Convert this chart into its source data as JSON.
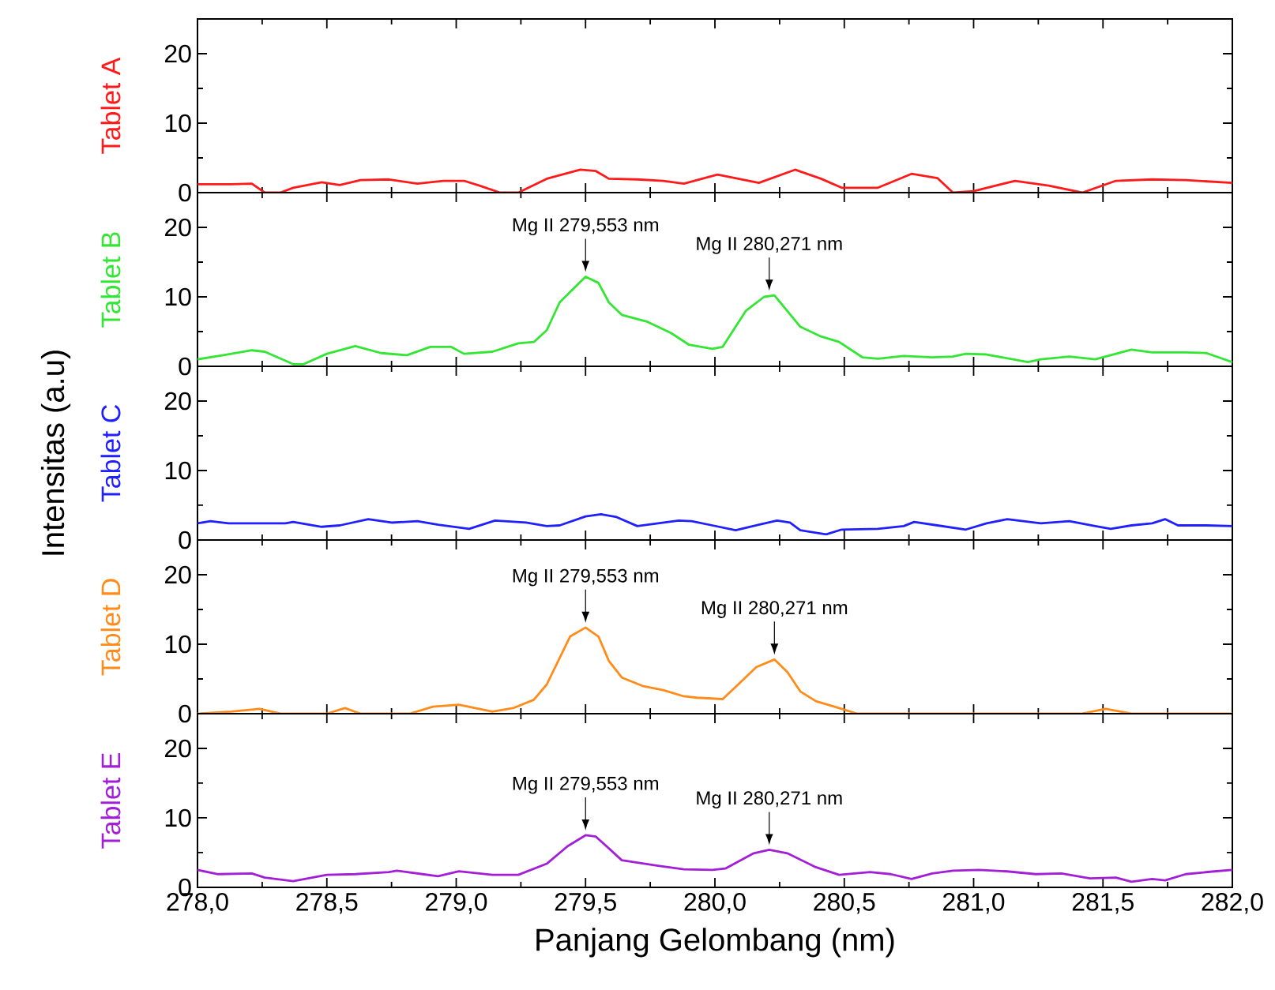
{
  "chart_data": [
    {
      "type": "line",
      "ylabel": "Tablet A",
      "xlim": [
        278,
        282
      ],
      "xticks": [
        {
          "value": 278,
          "label": null
        },
        {
          "value": 278.5,
          "label": null
        },
        {
          "value": 279,
          "label": null
        },
        {
          "value": 279.5,
          "label": null
        },
        {
          "value": 280,
          "label": null
        },
        {
          "value": 280.5,
          "label": null
        },
        {
          "value": 281,
          "label": null
        },
        {
          "value": 281.5,
          "label": null
        },
        {
          "value": 282,
          "label": null
        }
      ],
      "ylim": [
        0,
        25
      ],
      "yticks": [
        0,
        10,
        20
      ],
      "tick_labels": "y",
      "series": [
        {
          "color": "#ff1a1a",
          "x": [
            278.0,
            278.13,
            278.21,
            278.26,
            278.32,
            278.37,
            278.48,
            278.55,
            278.63,
            278.74,
            278.85,
            278.95,
            279.03,
            279.09,
            279.17,
            279.24,
            279.35,
            279.48,
            279.54,
            279.59,
            279.7,
            279.8,
            279.88,
            280.01,
            280.17,
            280.31,
            280.41,
            280.49,
            280.63,
            280.76,
            280.86,
            280.92,
            281.0,
            281.16,
            281.29,
            281.42,
            281.55,
            281.69,
            281.82,
            282.0
          ],
          "values": [
            1.2,
            1.2,
            1.3,
            0,
            0,
            0.7,
            1.5,
            1.1,
            1.8,
            1.9,
            1.3,
            1.7,
            1.7,
            1.0,
            0,
            0,
            2.0,
            3.3,
            3.1,
            2.0,
            1.9,
            1.7,
            1.3,
            2.6,
            1.4,
            3.3,
            2.0,
            0.7,
            0.7,
            2.7,
            2.1,
            0,
            0.2,
            1.7,
            1.0,
            0,
            1.7,
            1.9,
            1.8,
            1.4
          ]
        }
      ]
    },
    {
      "type": "line",
      "ylabel": "Tablet B",
      "xlim": [
        278,
        282
      ],
      "xticks": [
        {
          "value": 278,
          "label": null
        },
        {
          "value": 278.5,
          "label": null
        },
        {
          "value": 279,
          "label": null
        },
        {
          "value": 279.5,
          "label": null
        },
        {
          "value": 280,
          "label": null
        },
        {
          "value": 280.5,
          "label": null
        },
        {
          "value": 281,
          "label": null
        },
        {
          "value": 281.5,
          "label": null
        },
        {
          "value": 282,
          "label": null
        }
      ],
      "ylim": [
        0,
        25
      ],
      "yticks": [
        0,
        10,
        20
      ],
      "tick_labels": "y",
      "annotations": [
        {
          "text": "Mg II 279,553 nm",
          "x": 279.5,
          "y": 12.9
        },
        {
          "text": "Mg II 280,271 nm",
          "x": 280.21,
          "y": 10.2
        }
      ],
      "series": [
        {
          "color": "#33e633",
          "x": [
            278.0,
            278.1,
            278.21,
            278.26,
            278.37,
            278.41,
            278.5,
            278.61,
            278.71,
            278.81,
            278.9,
            278.98,
            279.03,
            279.14,
            279.24,
            279.3,
            279.35,
            279.4,
            279.5,
            279.55,
            279.59,
            279.64,
            279.74,
            279.83,
            279.9,
            279.99,
            280.03,
            280.12,
            280.19,
            280.23,
            280.33,
            280.41,
            280.48,
            280.57,
            280.63,
            280.73,
            280.84,
            280.92,
            280.97,
            281.05,
            281.21,
            281.26,
            281.37,
            281.47,
            281.61,
            281.69,
            281.82,
            281.9,
            282.0
          ],
          "values": [
            1.0,
            1.6,
            2.3,
            2.1,
            0.3,
            0.3,
            1.8,
            2.9,
            1.9,
            1.6,
            2.8,
            2.8,
            1.8,
            2.1,
            3.3,
            3.5,
            5.2,
            9.2,
            12.9,
            12.0,
            9.2,
            7.4,
            6.4,
            4.8,
            3.1,
            2.5,
            2.8,
            8.0,
            10.0,
            10.2,
            5.7,
            4.3,
            3.5,
            1.3,
            1.1,
            1.5,
            1.3,
            1.4,
            1.8,
            1.7,
            0.6,
            1.0,
            1.4,
            1.0,
            2.4,
            2.0,
            2.0,
            1.9,
            0.6
          ]
        }
      ]
    },
    {
      "type": "line",
      "ylabel": "Tablet C",
      "xlim": [
        278,
        282
      ],
      "xticks": [
        {
          "value": 278,
          "label": null
        },
        {
          "value": 278.5,
          "label": null
        },
        {
          "value": 279,
          "label": null
        },
        {
          "value": 279.5,
          "label": null
        },
        {
          "value": 280,
          "label": null
        },
        {
          "value": 280.5,
          "label": null
        },
        {
          "value": 281,
          "label": null
        },
        {
          "value": 281.5,
          "label": null
        },
        {
          "value": 282,
          "label": null
        }
      ],
      "ylim": [
        0,
        25
      ],
      "yticks": [
        0,
        10,
        20
      ],
      "tick_labels": "y",
      "annotations": [
        "Intensitas (a.u)"
      ],
      "series": [
        {
          "color": "#1f1fff",
          "x": [
            278.0,
            278.05,
            278.12,
            278.21,
            278.34,
            278.37,
            278.48,
            278.55,
            278.66,
            278.75,
            278.85,
            278.93,
            279.05,
            279.15,
            279.27,
            279.35,
            279.4,
            279.5,
            279.56,
            279.62,
            279.7,
            279.78,
            279.86,
            279.91,
            279.99,
            280.08,
            280.17,
            280.24,
            280.29,
            280.33,
            280.43,
            280.49,
            280.63,
            280.73,
            280.77,
            280.86,
            280.97,
            281.05,
            281.13,
            281.26,
            281.37,
            281.47,
            281.53,
            281.61,
            281.69,
            281.74,
            281.79,
            281.9,
            282.0
          ],
          "values": [
            2.4,
            2.7,
            2.4,
            2.4,
            2.4,
            2.6,
            1.9,
            2.1,
            3.0,
            2.5,
            2.7,
            2.2,
            1.6,
            2.8,
            2.5,
            2.0,
            2.1,
            3.4,
            3.7,
            3.3,
            2.0,
            2.4,
            2.8,
            2.7,
            2.1,
            1.4,
            2.2,
            2.8,
            2.5,
            1.4,
            0.8,
            1.5,
            1.6,
            2.0,
            2.6,
            2.1,
            1.5,
            2.4,
            3.0,
            2.4,
            2.7,
            2.0,
            1.6,
            2.1,
            2.4,
            3.0,
            2.1,
            2.1,
            2.0
          ]
        }
      ]
    },
    {
      "type": "line",
      "ylabel": "Tablet D",
      "xlim": [
        278,
        282
      ],
      "xticks": [
        {
          "value": 278,
          "label": null
        },
        {
          "value": 278.5,
          "label": null
        },
        {
          "value": 279,
          "label": null
        },
        {
          "value": 279.5,
          "label": null
        },
        {
          "value": 280,
          "label": null
        },
        {
          "value": 280.5,
          "label": null
        },
        {
          "value": 281,
          "label": null
        },
        {
          "value": 281.5,
          "label": null
        },
        {
          "value": 282,
          "label": null
        }
      ],
      "ylim": [
        0,
        25
      ],
      "yticks": [
        0,
        10,
        20
      ],
      "tick_labels": "y",
      "annotations": [
        {
          "text": "Mg II 279,553 nm",
          "x": 279.5,
          "y": 12.4
        },
        {
          "text": "Mg II 280,271 nm",
          "x": 280.23,
          "y": 7.8
        }
      ],
      "series": [
        {
          "color": "#ff8c1a",
          "x": [
            278.0,
            278.13,
            278.24,
            278.32,
            278.5,
            278.57,
            278.63,
            278.82,
            278.91,
            279.01,
            279.14,
            279.22,
            279.3,
            279.35,
            279.44,
            279.5,
            279.55,
            279.59,
            279.64,
            279.72,
            279.8,
            279.88,
            279.93,
            280.03,
            280.09,
            280.16,
            280.23,
            280.28,
            280.33,
            280.39,
            280.48,
            280.55,
            280.81,
            281.42,
            281.51,
            281.61,
            282.0
          ],
          "values": [
            0,
            0.3,
            0.7,
            0,
            0,
            0.8,
            0,
            0,
            1.0,
            1.3,
            0.3,
            0.8,
            2.0,
            4.2,
            11.1,
            12.4,
            11.1,
            7.6,
            5.2,
            4.0,
            3.4,
            2.5,
            2.3,
            2.1,
            4.2,
            6.7,
            7.8,
            6.0,
            3.2,
            1.8,
            0.8,
            0,
            0,
            0,
            0.7,
            0,
            0
          ]
        }
      ]
    },
    {
      "type": "line",
      "ylabel": "Tablet E",
      "xlabel": "Panjang Gelombang (nm)",
      "xlim": [
        278,
        282
      ],
      "xticks": [
        {
          "value": 278,
          "label": "278,0"
        },
        {
          "value": 278.5,
          "label": "278,5"
        },
        {
          "value": 279,
          "label": "279,0"
        },
        {
          "value": 279.5,
          "label": "279,5"
        },
        {
          "value": 280,
          "label": "280,0"
        },
        {
          "value": 280.5,
          "label": "280,5"
        },
        {
          "value": 281,
          "label": "281,0"
        },
        {
          "value": 281.5,
          "label": "281,5"
        },
        {
          "value": 282,
          "label": "282,0"
        }
      ],
      "ylim": [
        0,
        25
      ],
      "yticks": [
        0,
        10,
        20
      ],
      "annotations": [
        {
          "text": "Mg II 279,553 nm",
          "x": 279.5,
          "y": 7.5
        },
        {
          "text": "Mg II 280,271 nm",
          "x": 280.21,
          "y": 5.4
        }
      ],
      "series": [
        {
          "color": "#a31fd6",
          "x": [
            278.0,
            278.08,
            278.21,
            278.26,
            278.37,
            278.5,
            278.61,
            278.74,
            278.77,
            278.87,
            278.93,
            279.01,
            279.14,
            279.24,
            279.35,
            279.43,
            279.5,
            279.54,
            279.64,
            279.78,
            279.88,
            279.99,
            280.04,
            280.15,
            280.21,
            280.28,
            280.39,
            280.48,
            280.6,
            280.68,
            280.76,
            280.84,
            280.92,
            281.02,
            281.13,
            281.24,
            281.34,
            281.45,
            281.55,
            281.61,
            281.69,
            281.74,
            281.82,
            281.93,
            282.0
          ],
          "values": [
            2.5,
            1.9,
            2.0,
            1.4,
            0.9,
            1.8,
            1.9,
            2.2,
            2.4,
            1.9,
            1.6,
            2.3,
            1.8,
            1.8,
            3.4,
            5.9,
            7.5,
            7.3,
            3.9,
            3.1,
            2.6,
            2.5,
            2.7,
            4.9,
            5.4,
            4.9,
            2.9,
            1.8,
            2.2,
            1.9,
            1.2,
            2.0,
            2.4,
            2.5,
            2.3,
            1.9,
            2.0,
            1.3,
            1.4,
            0.8,
            1.2,
            1.0,
            1.9,
            2.3,
            2.5
          ]
        }
      ]
    }
  ]
}
